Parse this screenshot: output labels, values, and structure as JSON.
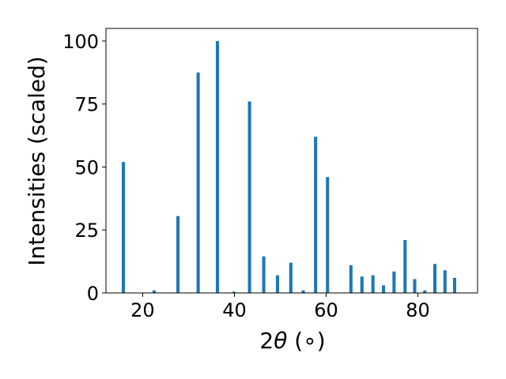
{
  "chart_data": {
    "type": "bar",
    "title": "",
    "xlabel_parts": {
      "main": "2",
      "symbol": "θ",
      "unit": " (∘)"
    },
    "ylabel": "Intensities (scaled)",
    "xlim": [
      12,
      93
    ],
    "ylim": [
      0,
      105
    ],
    "xticks": [
      20,
      40,
      60,
      80
    ],
    "yticks": [
      0,
      25,
      50,
      75,
      100
    ],
    "grid": false,
    "bar_color": "#1f77b4",
    "bar_width": 0.7,
    "series": [
      {
        "x": [
          15.8,
          22.5,
          27.7,
          32.1,
          36.3,
          39.9,
          43.3,
          46.4,
          49.4,
          52.3,
          55.0,
          57.7,
          60.3,
          65.4,
          67.8,
          70.2,
          72.5,
          74.8,
          77.2,
          79.3,
          81.5,
          83.7,
          85.9,
          88.0
        ],
        "values": [
          52,
          1,
          30.5,
          87.5,
          100,
          0.5,
          76,
          14.5,
          7,
          12,
          1,
          62,
          46,
          11,
          6.5,
          7,
          3,
          8.5,
          21,
          5.5,
          1,
          11.5,
          9,
          6
        ]
      }
    ]
  }
}
